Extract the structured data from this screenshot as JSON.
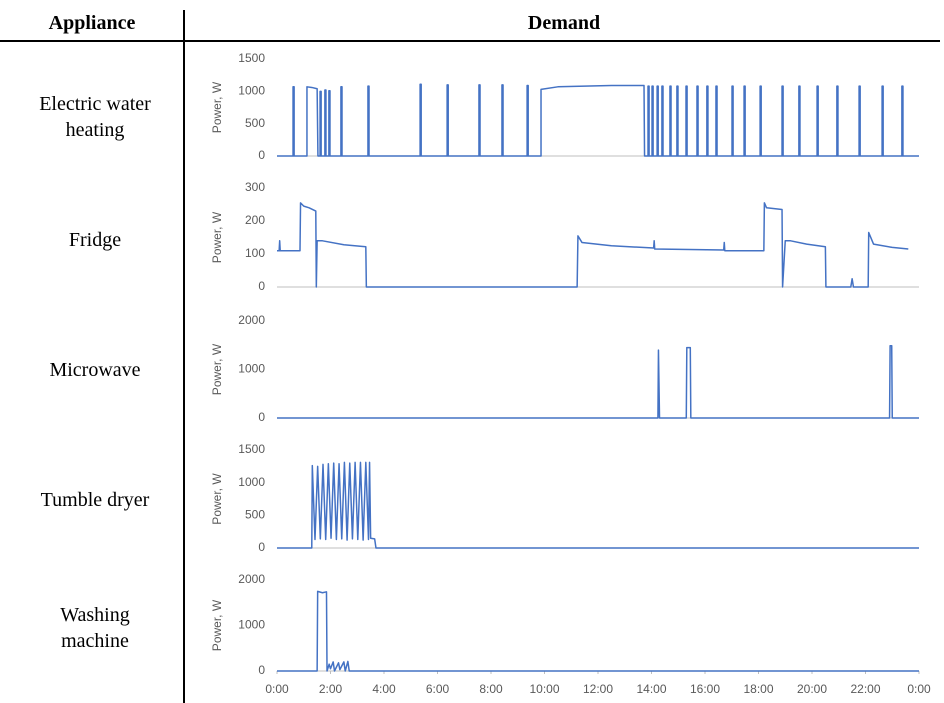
{
  "table": {
    "headers": [
      "Appliance",
      "Demand"
    ],
    "rows": [
      "Electric water heating",
      "Fridge",
      "Microwave",
      "Tumble dryer",
      "Washing machine"
    ]
  },
  "chart_data": [
    {
      "type": "line",
      "ylabel": "Power, W",
      "color": "#4472c4",
      "xlim": [
        0,
        24
      ],
      "ylim": [
        0,
        1500
      ],
      "yticks": [
        0,
        500,
        1000,
        1500
      ],
      "x": [
        0,
        0.6,
        0.6,
        0.64,
        0.64,
        1.12,
        1.12,
        1.3,
        1.5,
        1.53,
        1.61,
        1.61,
        1.65,
        1.65,
        1.79,
        1.79,
        1.83,
        1.83,
        1.94,
        1.94,
        1.98,
        1.98,
        2.39,
        2.39,
        2.43,
        2.43,
        3.4,
        3.4,
        3.44,
        3.44,
        5.35,
        5.35,
        5.39,
        5.39,
        6.36,
        6.36,
        6.4,
        6.4,
        7.55,
        7.55,
        7.59,
        7.59,
        8.41,
        8.41,
        8.45,
        8.45,
        9.35,
        9.35,
        9.39,
        9.39,
        9.87,
        9.87,
        10.5,
        11.5,
        12.5,
        13.72,
        13.74,
        13.87,
        13.87,
        13.91,
        13.91,
        14.02,
        14.02,
        14.06,
        14.06,
        14.21,
        14.21,
        14.25,
        14.25,
        14.39,
        14.39,
        14.43,
        14.43,
        14.69,
        14.69,
        14.73,
        14.73,
        14.95,
        14.95,
        14.99,
        14.99,
        15.29,
        15.29,
        15.33,
        15.33,
        15.7,
        15.7,
        15.74,
        15.74,
        16.07,
        16.07,
        16.11,
        16.11,
        16.41,
        16.41,
        16.45,
        16.45,
        17.01,
        17.01,
        17.05,
        17.05,
        17.46,
        17.46,
        17.5,
        17.5,
        18.06,
        18.06,
        18.1,
        18.1,
        18.88,
        18.88,
        18.92,
        18.92,
        19.51,
        19.51,
        19.55,
        19.55,
        20.19,
        20.19,
        20.23,
        20.23,
        20.93,
        20.93,
        20.97,
        20.97,
        21.76,
        21.76,
        21.8,
        21.8,
        22.62,
        22.62,
        22.66,
        22.66,
        23.36,
        23.36,
        23.4,
        23.4,
        24
      ],
      "values": [
        0,
        0,
        1070,
        1070,
        0,
        0,
        1070,
        1060,
        1040,
        0,
        0,
        1000,
        1000,
        0,
        0,
        1020,
        1020,
        0,
        0,
        1010,
        1010,
        0,
        0,
        1070,
        1070,
        0,
        0,
        1080,
        1080,
        0,
        0,
        1110,
        1110,
        0,
        0,
        1100,
        1100,
        0,
        0,
        1100,
        1100,
        0,
        0,
        1100,
        1100,
        0,
        0,
        1090,
        1090,
        0,
        0,
        1030,
        1070,
        1080,
        1090,
        1090,
        0,
        0,
        1080,
        1080,
        0,
        0,
        1080,
        1080,
        0,
        0,
        1080,
        1080,
        0,
        0,
        1080,
        1080,
        0,
        0,
        1080,
        1080,
        0,
        0,
        1080,
        1080,
        0,
        0,
        1080,
        1080,
        0,
        0,
        1080,
        1080,
        0,
        0,
        1080,
        1080,
        0,
        0,
        1080,
        1080,
        0,
        0,
        1080,
        1080,
        0,
        0,
        1080,
        1080,
        0,
        0,
        1080,
        1080,
        0,
        0,
        1080,
        1080,
        0,
        0,
        1080,
        1080,
        0,
        0,
        1080,
        1080,
        0,
        0,
        1080,
        1080,
        0,
        0,
        1080,
        1080,
        0,
        0,
        1080,
        1080,
        0,
        0,
        1080,
        1080,
        0,
        0
      ]
    },
    {
      "type": "line",
      "ylabel": "Power, W",
      "color": "#4472c4",
      "xlim": [
        0,
        24
      ],
      "ylim": [
        0,
        300
      ],
      "yticks": [
        0,
        100,
        200,
        300
      ],
      "x": [
        0,
        0.08,
        0.1,
        0.12,
        0.86,
        0.88,
        1.0,
        1.2,
        1.45,
        1.47,
        1.5,
        1.7,
        2.5,
        3.32,
        3.34,
        11.22,
        11.25,
        11.4,
        12.5,
        14.08,
        14.1,
        14.12,
        16.7,
        16.72,
        16.74,
        18.2,
        18.22,
        18.3,
        18.88,
        18.9,
        19.0,
        19.2,
        19.8,
        20.5,
        20.52,
        21.45,
        21.5,
        21.55,
        22.1,
        22.12,
        22.3,
        23,
        23.6
      ],
      "values": [
        110,
        110,
        140,
        110,
        110,
        255,
        245,
        240,
        230,
        0,
        140,
        140,
        128,
        122,
        0,
        0,
        155,
        135,
        125,
        118,
        140,
        115,
        112,
        135,
        110,
        110,
        255,
        240,
        235,
        0,
        140,
        140,
        130,
        122,
        0,
        0,
        25,
        0,
        0,
        165,
        130,
        120,
        115
      ]
    },
    {
      "type": "line",
      "ylabel": "Power, W",
      "color": "#4472c4",
      "xlim": [
        0,
        24
      ],
      "ylim": [
        0,
        2000
      ],
      "yticks": [
        0,
        1000,
        2000
      ],
      "x": [
        0,
        14.24,
        14.26,
        14.3,
        15.3,
        15.32,
        15.45,
        15.47,
        22.9,
        22.92,
        22.98,
        23.0,
        24
      ],
      "values": [
        0,
        0,
        1400,
        0,
        0,
        1450,
        1450,
        0,
        0,
        1490,
        1490,
        0,
        0
      ]
    },
    {
      "type": "line",
      "ylabel": "Power, W",
      "color": "#4472c4",
      "xlim": [
        0,
        24
      ],
      "ylim": [
        0,
        1500
      ],
      "yticks": [
        0,
        500,
        1000,
        1500
      ],
      "x": [
        0,
        1.3,
        1.32,
        1.42,
        1.52,
        1.62,
        1.72,
        1.82,
        1.92,
        2.02,
        2.12,
        2.22,
        2.32,
        2.42,
        2.52,
        2.62,
        2.72,
        2.82,
        2.92,
        3.02,
        3.12,
        3.22,
        3.32,
        3.42,
        3.46,
        3.5,
        3.65,
        3.7,
        24
      ],
      "values": [
        0,
        0,
        1260,
        130,
        1250,
        140,
        1280,
        130,
        1290,
        150,
        1300,
        130,
        1290,
        140,
        1310,
        120,
        1300,
        140,
        1310,
        130,
        1310,
        120,
        1310,
        130,
        1310,
        150,
        140,
        0,
        0
      ]
    },
    {
      "type": "line",
      "ylabel": "Power, W",
      "color": "#4472c4",
      "xlim": [
        0,
        24
      ],
      "ylim": [
        0,
        2000
      ],
      "yticks": [
        0,
        1000,
        2000
      ],
      "xticks": [
        {
          "value": 0,
          "label": "0:00"
        },
        {
          "value": 2,
          "label": "2:00"
        },
        {
          "value": 4,
          "label": "4:00"
        },
        {
          "value": 6,
          "label": "6:00"
        },
        {
          "value": 8,
          "label": "8:00"
        },
        {
          "value": 10,
          "label": "10:00"
        },
        {
          "value": 12,
          "label": "12:00"
        },
        {
          "value": 14,
          "label": "14:00"
        },
        {
          "value": 16,
          "label": "16:00"
        },
        {
          "value": 18,
          "label": "18:00"
        },
        {
          "value": 20,
          "label": "20:00"
        },
        {
          "value": 22,
          "label": "22:00"
        },
        {
          "value": 24,
          "label": "0:00"
        }
      ],
      "x": [
        0,
        1.5,
        1.52,
        1.7,
        1.85,
        1.87,
        1.95,
        2.0,
        2.1,
        2.15,
        2.3,
        2.35,
        2.5,
        2.55,
        2.65,
        2.7,
        24
      ],
      "values": [
        0,
        0,
        1750,
        1720,
        1740,
        0,
        150,
        50,
        200,
        0,
        180,
        30,
        200,
        0,
        210,
        0,
        0
      ]
    }
  ]
}
